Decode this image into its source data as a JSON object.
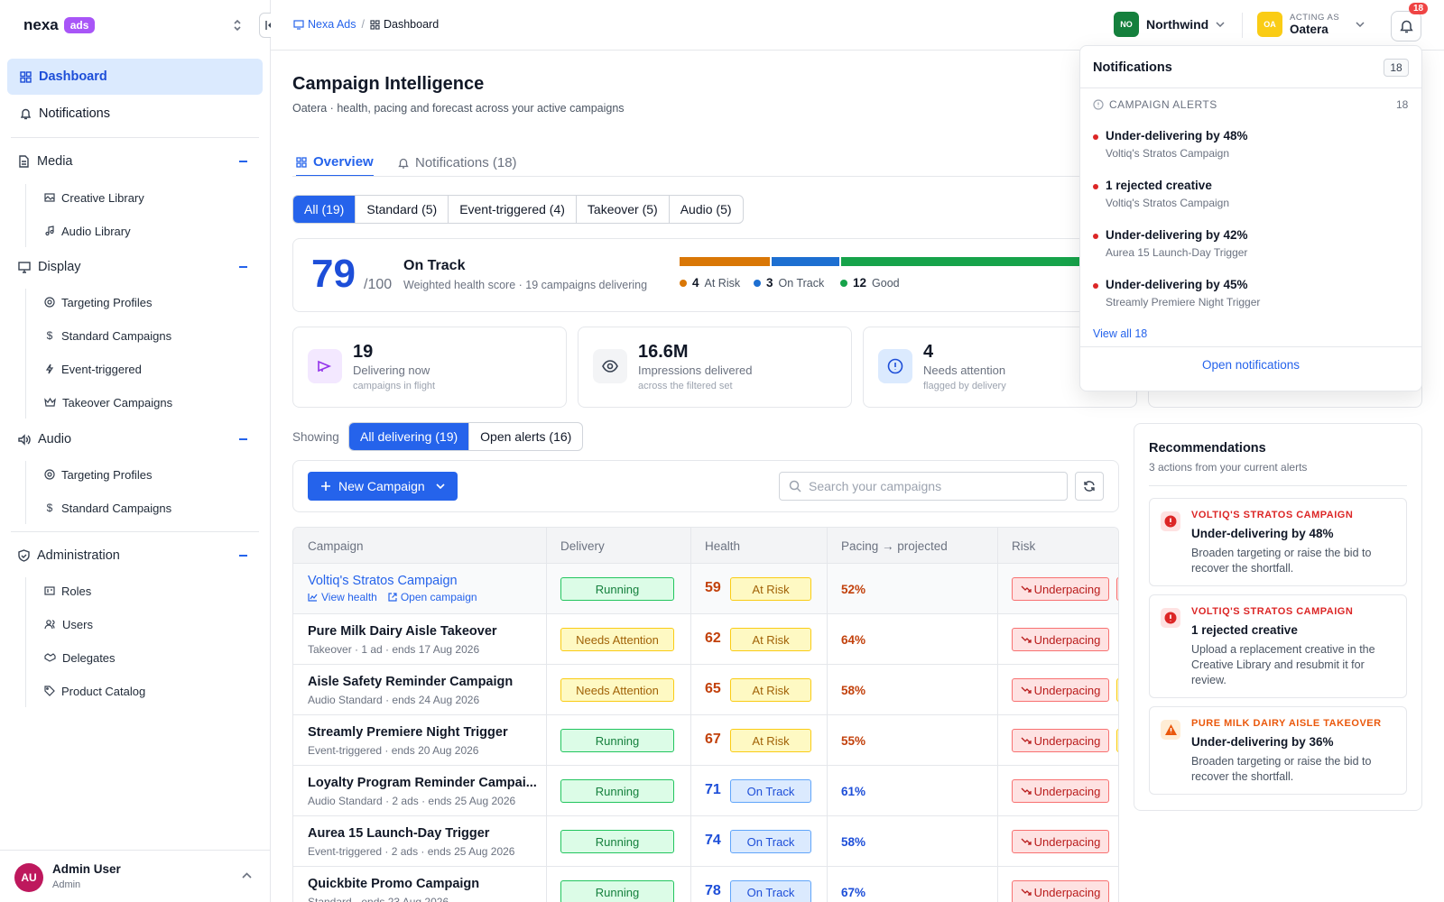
{
  "brand": {
    "name": "nexa",
    "tag": "ads"
  },
  "sidebar": {
    "dashboard": "Dashboard",
    "notifications": "Notifications",
    "sections": [
      {
        "label": "Media",
        "items": [
          "Creative Library",
          "Audio Library"
        ]
      },
      {
        "label": "Display",
        "items": [
          "Targeting Profiles",
          "Standard Campaigns",
          "Event-triggered",
          "Takeover Campaigns"
        ]
      },
      {
        "label": "Audio",
        "items": [
          "Targeting Profiles",
          "Standard Campaigns"
        ]
      },
      {
        "label": "Administration",
        "items": [
          "Roles",
          "Users",
          "Delegates",
          "Product Catalog"
        ]
      }
    ],
    "user": {
      "initials": "AU",
      "name": "Admin User",
      "role": "Admin"
    }
  },
  "topbar": {
    "breadcrumb": [
      "Nexa Ads",
      "/",
      "Dashboard"
    ],
    "org": {
      "initials": "NO",
      "name": "Northwind"
    },
    "acting": {
      "label": "ACTING AS",
      "initials": "OA",
      "name": "Oatera"
    },
    "notif_count": "18"
  },
  "page": {
    "title": "Campaign Intelligence",
    "subtitle": "Oatera · health, pacing and forecast across your active campaigns",
    "tabs": [
      "Overview",
      "Notifications (18)"
    ],
    "filters": [
      "All (19)",
      "Standard (5)",
      "Event-triggered (4)",
      "Takeover (5)",
      "Audio (5)"
    ]
  },
  "health": {
    "score": "79",
    "denominator": "/100",
    "status": "On Track",
    "description": "Weighted health score · 19 campaigns delivering",
    "breakdown": [
      {
        "count": "4",
        "label": "At Risk",
        "value": 4,
        "color": "#d97706"
      },
      {
        "count": "3",
        "label": "On Track",
        "value": 3,
        "color": "#1d6fd1"
      },
      {
        "count": "12",
        "label": "Good",
        "value": 12,
        "color": "#16a34a"
      }
    ]
  },
  "stats": [
    {
      "value": "19",
      "label": "Delivering now",
      "sub": "campaigns in flight",
      "icon": "megaphone-icon"
    },
    {
      "value": "16.6M",
      "label": "Impressions delivered",
      "sub": "across the filtered set",
      "icon": "eye-icon"
    },
    {
      "value": "4",
      "label": "Needs attention",
      "sub": "flagged by delivery",
      "icon": "alert-circle-icon"
    }
  ],
  "showing": {
    "label": "Showing",
    "options": [
      "All delivering (19)",
      "Open alerts (16)"
    ]
  },
  "toolbar": {
    "new_campaign": "New Campaign",
    "search_placeholder": "Search your campaigns"
  },
  "table": {
    "columns": [
      "Campaign",
      "Delivery",
      "Health",
      "Pacing → projected",
      "Risk"
    ],
    "view_health": "View health",
    "open_campaign": "Open campaign",
    "rows": [
      {
        "name": "Voltiq's Stratos Campaign",
        "meta": "",
        "delivery": "Running",
        "health": "59",
        "health_status": "At Risk",
        "pacing": "52%",
        "risk": "Underpacing"
      },
      {
        "name": "Pure Milk Dairy Aisle Takeover",
        "meta": "Takeover · 1 ad · ends 17 Aug 2026",
        "delivery": "Needs Attention",
        "health": "62",
        "health_status": "At Risk",
        "pacing": "64%",
        "risk": "Underpacing"
      },
      {
        "name": "Aisle Safety Reminder Campaign",
        "meta": "Audio Standard · ends 24 Aug 2026",
        "delivery": "Needs Attention",
        "health": "65",
        "health_status": "At Risk",
        "pacing": "58%",
        "risk": "Underpacing"
      },
      {
        "name": "Streamly Premiere Night Trigger",
        "meta": "Event-triggered · ends 20 Aug 2026",
        "delivery": "Running",
        "health": "67",
        "health_status": "At Risk",
        "pacing": "55%",
        "risk": "Underpacing"
      },
      {
        "name": "Loyalty Program Reminder Campai...",
        "meta": "Audio Standard · 2 ads · ends 25 Aug 2026",
        "delivery": "Running",
        "health": "71",
        "health_status": "On Track",
        "pacing": "61%",
        "risk": "Underpacing"
      },
      {
        "name": "Aurea 15 Launch-Day Trigger",
        "meta": "Event-triggered · 2 ads · ends 25 Aug 2026",
        "delivery": "Running",
        "health": "74",
        "health_status": "On Track",
        "pacing": "58%",
        "risk": "Underpacing"
      },
      {
        "name": "Quickbite Promo Campaign",
        "meta": "Standard · ends 23 Aug 2026",
        "delivery": "Running",
        "health": "78",
        "health_status": "On Track",
        "pacing": "67%",
        "risk": "Underpacing"
      }
    ]
  },
  "recommendations": {
    "title": "Recommendations",
    "subtitle": "3 actions from your current alerts",
    "items": [
      {
        "campaign": "VOLTIQ'S STRATOS CAMPAIGN",
        "headline": "Under-delivering by 48%",
        "text": "Broaden targeting or raise the bid to recover the shortfall."
      },
      {
        "campaign": "VOLTIQ'S STRATOS CAMPAIGN",
        "headline": "1 rejected creative",
        "text": "Upload a replacement creative in the Creative Library and resubmit it for review."
      },
      {
        "campaign": "PURE MILK DAIRY AISLE TAKEOVER",
        "headline": "Under-delivering by 36%",
        "text": "Broaden targeting or raise the bid to recover the shortfall."
      }
    ]
  },
  "notifications": {
    "title": "Notifications",
    "count": "18",
    "section": "CAMPAIGN ALERTS",
    "section_count": "18",
    "items": [
      {
        "headline": "Under-delivering by 48%",
        "campaign": "Voltiq's Stratos Campaign"
      },
      {
        "headline": "1 rejected creative",
        "campaign": "Voltiq's Stratos Campaign"
      },
      {
        "headline": "Under-delivering by 42%",
        "campaign": "Aurea 15 Launch-Day Trigger"
      },
      {
        "headline": "Under-delivering by 45%",
        "campaign": "Streamly Premiere Night Trigger"
      }
    ],
    "view_all": "View all 18",
    "open": "Open notifications"
  }
}
